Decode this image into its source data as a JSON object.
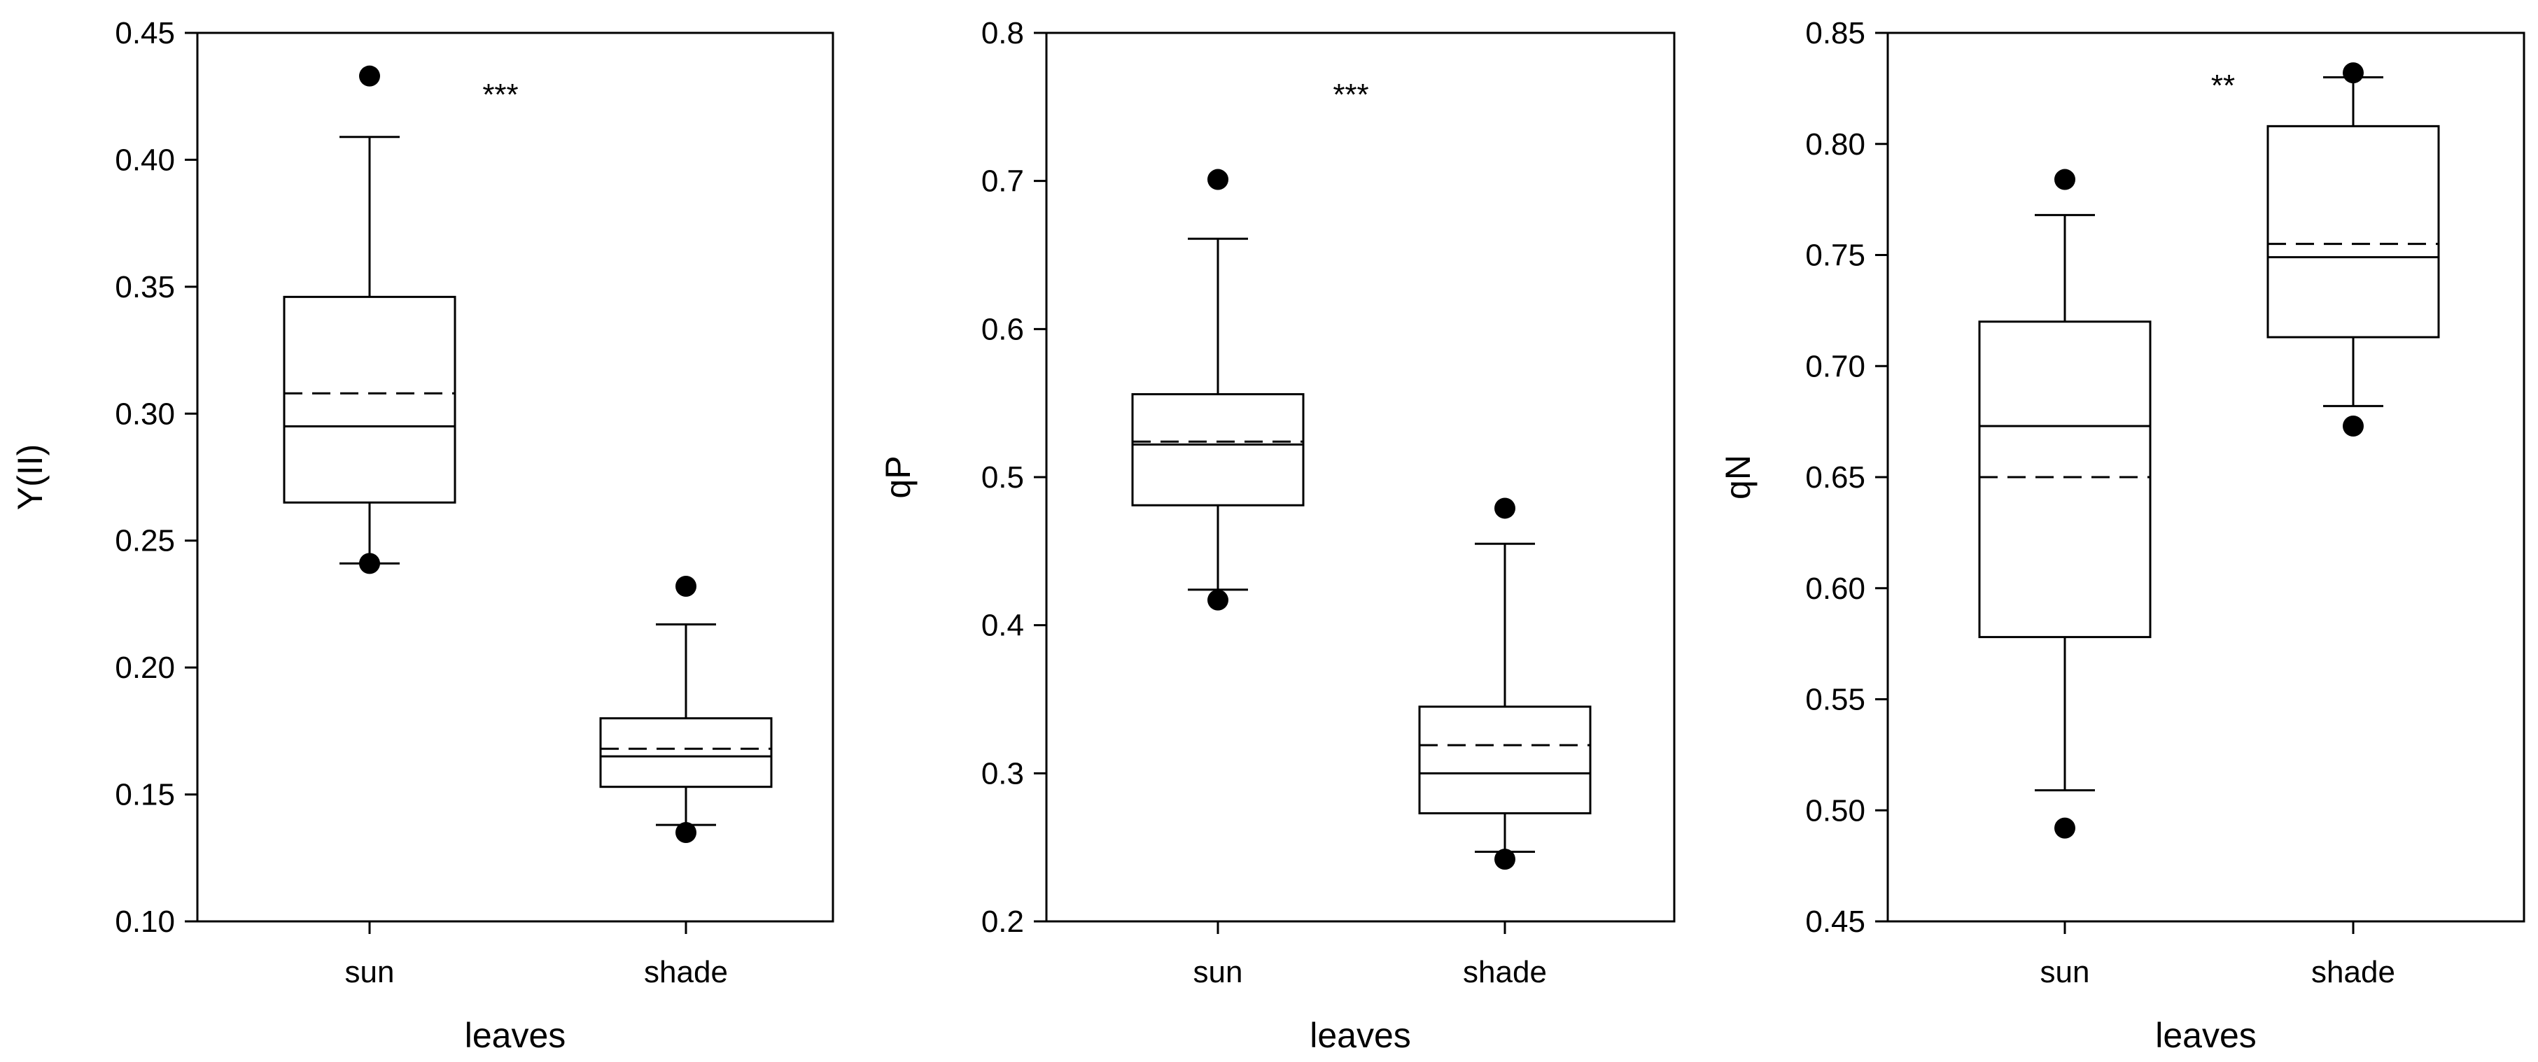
{
  "figure": {
    "description_type": "three-panel box plot comparing sun and shade leaves"
  },
  "chart_data": [
    {
      "type": "box",
      "xlabel": "leaves",
      "ylabel": "Y(II)",
      "categories": [
        "sun",
        "shade"
      ],
      "ylim": [
        0.1,
        0.45
      ],
      "yticks": [
        "0.10",
        "0.15",
        "0.20",
        "0.25",
        "0.30",
        "0.35",
        "0.40",
        "0.45"
      ],
      "significance": "***",
      "boxes": [
        {
          "category": "sun",
          "whisker_low": 0.241,
          "q1": 0.265,
          "median": 0.295,
          "mean": 0.308,
          "q3": 0.346,
          "whisker_high": 0.409,
          "outliers": [
            0.433,
            0.241
          ]
        },
        {
          "category": "shade",
          "whisker_low": 0.138,
          "q1": 0.153,
          "median": 0.165,
          "mean": 0.168,
          "q3": 0.18,
          "whisker_high": 0.217,
          "outliers": [
            0.232,
            0.135
          ]
        }
      ]
    },
    {
      "type": "box",
      "xlabel": "leaves",
      "ylabel": "qP",
      "categories": [
        "sun",
        "shade"
      ],
      "ylim": [
        0.2,
        0.8
      ],
      "yticks": [
        "0.2",
        "0.3",
        "0.4",
        "0.5",
        "0.6",
        "0.7",
        "0.8"
      ],
      "significance": "***",
      "boxes": [
        {
          "category": "sun",
          "whisker_low": 0.424,
          "q1": 0.481,
          "median": 0.522,
          "mean": 0.524,
          "q3": 0.556,
          "whisker_high": 0.661,
          "outliers": [
            0.701,
            0.417
          ]
        },
        {
          "category": "shade",
          "whisker_low": 0.247,
          "q1": 0.273,
          "median": 0.3,
          "mean": 0.319,
          "q3": 0.345,
          "whisker_high": 0.455,
          "outliers": [
            0.479,
            0.242
          ]
        }
      ]
    },
    {
      "type": "box",
      "xlabel": "leaves",
      "ylabel": "qN",
      "categories": [
        "sun",
        "shade"
      ],
      "ylim": [
        0.45,
        0.85
      ],
      "yticks": [
        "0.45",
        "0.50",
        "0.55",
        "0.60",
        "0.65",
        "0.70",
        "0.75",
        "0.80",
        "0.85"
      ],
      "significance": "**",
      "boxes": [
        {
          "category": "sun",
          "whisker_low": 0.509,
          "q1": 0.578,
          "median": 0.673,
          "mean": 0.65,
          "q3": 0.72,
          "whisker_high": 0.768,
          "outliers": [
            0.784,
            0.492
          ]
        },
        {
          "category": "shade",
          "whisker_low": 0.682,
          "q1": 0.713,
          "median": 0.749,
          "mean": 0.755,
          "q3": 0.808,
          "whisker_high": 0.83,
          "outliers": [
            0.832,
            0.673
          ]
        }
      ]
    }
  ]
}
